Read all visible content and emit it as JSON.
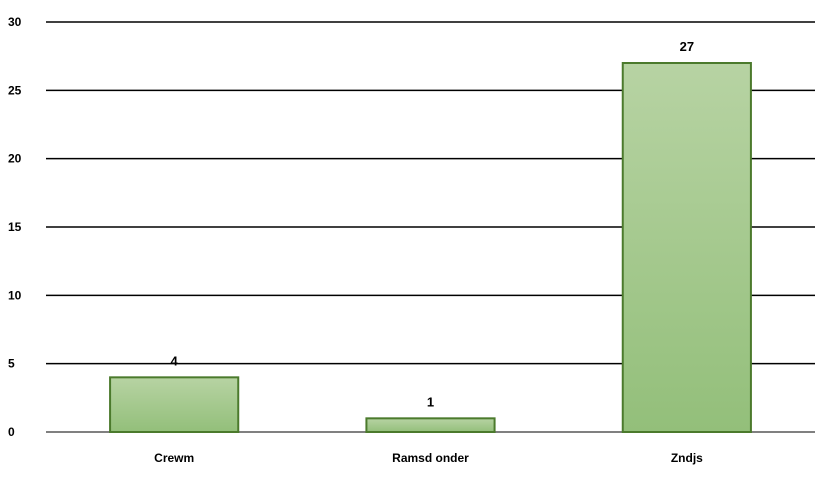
{
  "chart_data": {
    "type": "bar",
    "categories": [
      "Crewm",
      "Ramsd onder",
      "Zndjs"
    ],
    "values": [
      4,
      1,
      27
    ],
    "data_labels": [
      "4",
      "1",
      "27"
    ],
    "ylim": [
      0,
      30
    ],
    "yticks": [
      0,
      5,
      10,
      15,
      20,
      25,
      30
    ],
    "ytick_labels": [
      "0",
      "5",
      "10",
      "15",
      "20",
      "25",
      "30"
    ],
    "grid": true,
    "legend": "none",
    "title": "",
    "xlabel": "",
    "ylabel": "",
    "colors": {
      "bar_fill_top": "#b7d3a3",
      "bar_fill_bottom": "#93bf7a",
      "bar_border": "#4b7a2c",
      "gridline": "#000000",
      "text": "#000000"
    }
  }
}
